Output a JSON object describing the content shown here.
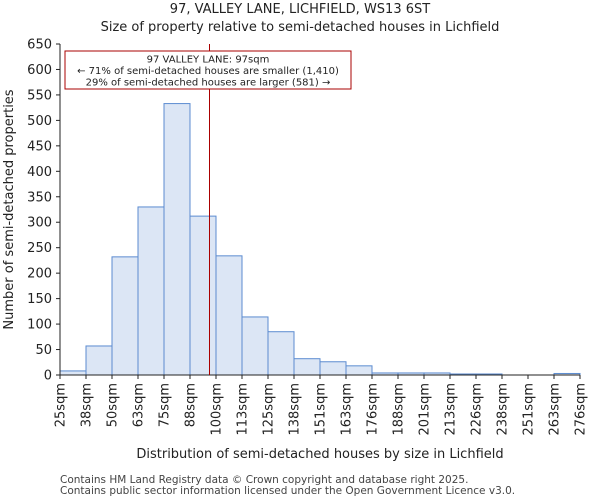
{
  "title_line1": "97, VALLEY LANE, LICHFIELD, WS13 6ST",
  "title_line2": "Size of property relative to semi-detached houses in Lichfield",
  "footer_line1": "Contains HM Land Registry data © Crown copyright and database right 2025.",
  "footer_line2": "Contains public sector information licensed under the Open Government Licence v3.0.",
  "colors": {
    "bar_fill": "#dce6f5",
    "bar_stroke": "#5b8bd0",
    "marker": "#aa0000"
  },
  "chart_data": {
    "type": "bar",
    "title": "97, VALLEY LANE, LICHFIELD, WS13 6ST",
    "subtitle": "Size of property relative to semi-detached houses in Lichfield",
    "xlabel": "Distribution of semi-detached houses by size in Lichfield",
    "ylabel": "Number of semi-detached properties",
    "ylim": [
      0,
      650
    ],
    "yticks": [
      0,
      50,
      100,
      150,
      200,
      250,
      300,
      350,
      400,
      450,
      500,
      550,
      600,
      650
    ],
    "bin_edges": [
      25,
      38,
      50,
      63,
      75,
      88,
      100,
      113,
      125,
      138,
      151,
      163,
      176,
      188,
      201,
      213,
      226,
      238,
      251,
      263,
      276
    ],
    "xtick_labels": [
      "25sqm",
      "38sqm",
      "50sqm",
      "63sqm",
      "75sqm",
      "88sqm",
      "100sqm",
      "113sqm",
      "125sqm",
      "138sqm",
      "151sqm",
      "163sqm",
      "176sqm",
      "188sqm",
      "201sqm",
      "213sqm",
      "226sqm",
      "238sqm",
      "251sqm",
      "263sqm",
      "276sqm"
    ],
    "values": [
      8,
      57,
      232,
      330,
      533,
      312,
      234,
      114,
      85,
      32,
      26,
      18,
      4,
      4,
      4,
      2,
      2,
      0,
      0,
      3
    ],
    "property_marker": {
      "value": 97,
      "label": "97 VALLEY LANE: 97sqm"
    },
    "annotation": {
      "line1": "97 VALLEY LANE: 97sqm",
      "line2": "← 71% of semi-detached houses are smaller (1,410)",
      "line3": "29% of semi-detached houses are larger (581) →"
    }
  }
}
